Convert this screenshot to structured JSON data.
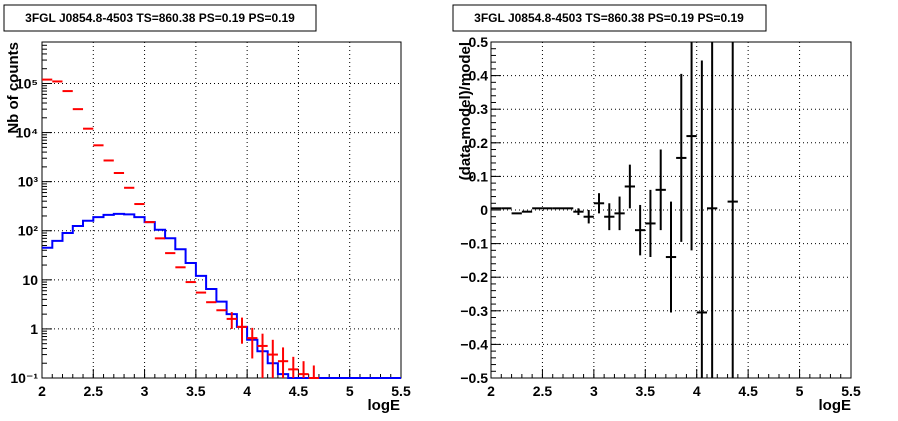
{
  "chart_data": [
    {
      "type": "step-line+errorbars",
      "title": "3FGL J0854.8-4503 TS=860.38 PS=0.19 PS=0.19",
      "xlabel": "logE",
      "ylabel": "Nb of counts",
      "xlim": [
        2,
        5.5
      ],
      "ylim": [
        0.1,
        700000
      ],
      "yscale": "log",
      "grid": true,
      "x_ticks": [
        2,
        2.5,
        3,
        3.5,
        4,
        4.5,
        5,
        5.5
      ],
      "x_tick_labels": [
        "2",
        "2.5",
        "3",
        "3.5",
        "4",
        "4.5",
        "5",
        "5.5"
      ],
      "y_ticks": [
        0.1,
        1,
        10,
        100,
        1000,
        10000,
        100000
      ],
      "y_tick_labels": [
        "10⁻¹",
        "1",
        "10",
        "10²",
        "10³",
        "10⁴",
        "10⁵"
      ],
      "model_color": "#0000ff",
      "data_color": "#ff0000",
      "model": {
        "bin_edges": [
          2.0,
          2.1,
          2.2,
          2.3,
          2.4,
          2.5,
          2.6,
          2.7,
          2.8,
          2.9,
          3.0,
          3.1,
          3.2,
          3.3,
          3.4,
          3.5,
          3.6,
          3.7,
          3.8,
          3.9,
          4.0,
          4.1,
          4.2,
          4.3,
          4.4,
          4.5,
          4.6,
          4.7,
          4.8,
          4.9,
          5.0,
          5.1,
          5.2,
          5.3,
          5.4,
          5.5
        ],
        "values": [
          45,
          62,
          90,
          125,
          160,
          190,
          210,
          220,
          215,
          190,
          150,
          105,
          70,
          42,
          22,
          12,
          6.5,
          3.6,
          2.0,
          1.1,
          0.6,
          0.35,
          0.2,
          0.12,
          0.1,
          0.1,
          0.1,
          0.1,
          0.1,
          0.1,
          0.1,
          0.1,
          0.1,
          0.1,
          0.1
        ]
      },
      "data": {
        "x": [
          2.05,
          2.15,
          2.25,
          2.35,
          2.45,
          2.55,
          2.65,
          2.75,
          2.85,
          2.95,
          3.05,
          3.15,
          3.25,
          3.35,
          3.45,
          3.55,
          3.65,
          3.75,
          3.85,
          3.95,
          4.05,
          4.15,
          4.25,
          4.35,
          4.45,
          4.55,
          4.65
        ],
        "y": [
          120000,
          110000,
          70000,
          30000,
          12000,
          5500,
          2700,
          1500,
          750,
          350,
          150,
          70,
          35,
          18,
          9,
          5.5,
          3.5,
          2.4,
          1.6,
          1.1,
          0.65,
          0.45,
          0.3,
          0.22,
          0.15,
          0.12,
          0.1
        ],
        "yerr": [
          0,
          0,
          0,
          0,
          0,
          0,
          0,
          0,
          0,
          0,
          0,
          0,
          0,
          0,
          0,
          0,
          0,
          0,
          0.6,
          0.6,
          0.4,
          0.35,
          0.3,
          0.2,
          0.12,
          0.1,
          0.08
        ]
      }
    },
    {
      "type": "errorbars",
      "title": "3FGL J0854.8-4503 TS=860.38 PS=0.19 PS=0.19",
      "xlabel": "logE",
      "ylabel": "(data-model)/model",
      "xlim": [
        2,
        5.5
      ],
      "ylim": [
        -0.5,
        0.5
      ],
      "grid": true,
      "x_ticks": [
        2,
        2.5,
        3,
        3.5,
        4,
        4.5,
        5,
        5.5
      ],
      "x_tick_labels": [
        "2",
        "2.5",
        "3",
        "3.5",
        "4",
        "4.5",
        "5",
        "5.5"
      ],
      "y_ticks": [
        -0.5,
        -0.4,
        -0.3,
        -0.2,
        -0.1,
        0,
        0.1,
        0.2,
        0.3,
        0.4,
        0.5
      ],
      "y_tick_labels": [
        "−0.5",
        "−0.4",
        "−0.3",
        "−0.2",
        "−0.1",
        "0",
        "0.1",
        "0.2",
        "0.3",
        "0.4",
        "0.5"
      ],
      "data_color": "#000000",
      "data": {
        "x": [
          2.05,
          2.15,
          2.25,
          2.35,
          2.45,
          2.55,
          2.65,
          2.75,
          2.85,
          2.95,
          3.05,
          3.15,
          3.25,
          3.35,
          3.45,
          3.55,
          3.65,
          3.75,
          3.85,
          3.95,
          4.15,
          4.35
        ],
        "y": [
          0.005,
          0.005,
          -0.01,
          -0.005,
          0.005,
          0.005,
          0.005,
          0.005,
          -0.005,
          -0.02,
          0.02,
          -0.02,
          -0.01,
          0.07,
          -0.06,
          -0.04,
          0.06,
          -0.14,
          0.155,
          0.22,
          0.005,
          0.025
        ],
        "yerr": [
          0,
          0,
          0,
          0,
          0,
          0,
          0,
          0,
          0.01,
          0.02,
          0.03,
          0.04,
          0.05,
          0.065,
          0.075,
          0.1,
          0.12,
          0.165,
          0.25,
          0.34,
          0.75,
          0.75
        ]
      },
      "extra_points": {
        "x": [
          4.05
        ],
        "y": [
          -0.305
        ],
        "yerr": [
          0.75
        ]
      }
    }
  ]
}
